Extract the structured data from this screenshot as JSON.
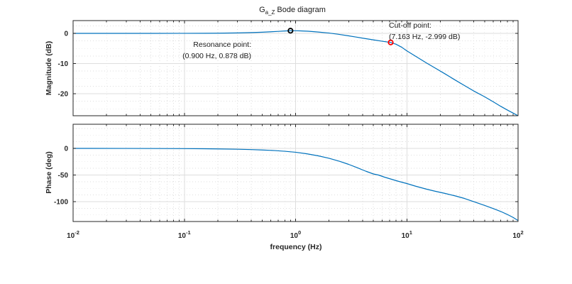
{
  "figure": {
    "title": {
      "prefix": "G",
      "subscript": "a_Z",
      "suffix": "Bode diagram"
    },
    "xlabel": "frequency (Hz)",
    "background": "#ffffff",
    "accent_color": "#0072BD"
  },
  "chart_data": [
    {
      "type": "line",
      "name": "magnitude",
      "ylabel": "Magnitude (dB)",
      "xscale": "log",
      "xlim": [
        0.01,
        100
      ],
      "ylim": [
        -27.3,
        4.24
      ],
      "grid": true,
      "legend": "none",
      "show_x_tick_labels": false,
      "xticks": [
        {
          "value": 0.01,
          "base": "10",
          "exp": "-2"
        },
        {
          "value": 0.1,
          "base": "10",
          "exp": "-1"
        },
        {
          "value": 1,
          "base": "10",
          "exp": "0"
        },
        {
          "value": 10,
          "base": "10",
          "exp": "1"
        },
        {
          "value": 100,
          "base": "10",
          "exp": "2"
        }
      ],
      "yticks": [
        {
          "value": 0,
          "label": "0"
        },
        {
          "value": -10,
          "label": "-10"
        },
        {
          "value": -20,
          "label": "-20"
        }
      ],
      "y_minor_step": 2.5,
      "series": [
        {
          "name": "magnitude-response",
          "color": "#0072BD",
          "points": [
            [
              0.01,
              0
            ],
            [
              0.02,
              0
            ],
            [
              0.05,
              0.005
            ],
            [
              0.1,
              0.02
            ],
            [
              0.15,
              0.04
            ],
            [
              0.2,
              0.07
            ],
            [
              0.3,
              0.15
            ],
            [
              0.4,
              0.26
            ],
            [
              0.5,
              0.39
            ],
            [
              0.6,
              0.53
            ],
            [
              0.7,
              0.67
            ],
            [
              0.8,
              0.79
            ],
            [
              0.9,
              0.878
            ],
            [
              1.0,
              0.87
            ],
            [
              1.1,
              0.83
            ],
            [
              1.3,
              0.71
            ],
            [
              1.6,
              0.45
            ],
            [
              2.0,
              0.1
            ],
            [
              2.4,
              -0.28
            ],
            [
              2.9,
              -0.73
            ],
            [
              3.5,
              -1.22
            ],
            [
              4.2,
              -1.7
            ],
            [
              5.0,
              -2.14
            ],
            [
              6.0,
              -2.6
            ],
            [
              7.163,
              -2.999
            ],
            [
              8.0,
              -3.6
            ],
            [
              9.0,
              -4.6
            ],
            [
              10,
              -5.8
            ],
            [
              12,
              -7.6
            ],
            [
              15,
              -9.8
            ],
            [
              18,
              -11.5
            ],
            [
              22,
              -13.4
            ],
            [
              27,
              -15.4
            ],
            [
              33,
              -17.3
            ],
            [
              40,
              -19.1
            ],
            [
              50,
              -21.0
            ],
            [
              60,
              -22.7
            ],
            [
              70,
              -24.2
            ],
            [
              80,
              -25.4
            ],
            [
              90,
              -26.4
            ],
            [
              100,
              -27.3
            ]
          ]
        }
      ],
      "markers": [
        {
          "name": "resonance-point",
          "f": 0.9,
          "v": 0.878,
          "color": "#000000"
        },
        {
          "name": "cutoff-point",
          "f": 7.163,
          "v": -2.999,
          "color": "#ff0000"
        }
      ],
      "annotations": [
        {
          "name": "resonance-label",
          "line1": "Resonance point:",
          "line2": "(0.900 Hz, 0.878 dB)"
        },
        {
          "name": "cutoff-label",
          "line1": "Cut-off point:",
          "line2": "(7.163 Hz, -2.999 dB)"
        }
      ]
    },
    {
      "type": "line",
      "name": "phase",
      "ylabel": "Phase (deg)",
      "xscale": "log",
      "xlim": [
        0.01,
        100
      ],
      "ylim": [
        -137.3,
        45.3
      ],
      "grid": true,
      "legend": "none",
      "show_x_tick_labels": true,
      "xticks": [
        {
          "value": 0.01,
          "base": "10",
          "exp": "-2"
        },
        {
          "value": 0.1,
          "base": "10",
          "exp": "-1"
        },
        {
          "value": 1,
          "base": "10",
          "exp": "0"
        },
        {
          "value": 10,
          "base": "10",
          "exp": "1"
        },
        {
          "value": 100,
          "base": "10",
          "exp": "2"
        }
      ],
      "yticks": [
        {
          "value": 0,
          "label": "0"
        },
        {
          "value": -50,
          "label": "-50"
        },
        {
          "value": -100,
          "label": "-100"
        }
      ],
      "y_minor_step": 12.5,
      "series": [
        {
          "name": "phase-response",
          "color": "#0072BD",
          "points": [
            [
              0.01,
              0
            ],
            [
              0.03,
              -0.1
            ],
            [
              0.06,
              -0.25
            ],
            [
              0.1,
              -0.45
            ],
            [
              0.15,
              -0.7
            ],
            [
              0.2,
              -1.0
            ],
            [
              0.3,
              -1.6
            ],
            [
              0.4,
              -2.3
            ],
            [
              0.5,
              -3.0
            ],
            [
              0.65,
              -4.1
            ],
            [
              0.8,
              -5.4
            ],
            [
              1.0,
              -7.3
            ],
            [
              1.25,
              -10
            ],
            [
              1.6,
              -14
            ],
            [
              2.0,
              -18.6
            ],
            [
              2.5,
              -24.4
            ],
            [
              3.0,
              -30
            ],
            [
              3.6,
              -36.5
            ],
            [
              4.3,
              -43
            ],
            [
              5.0,
              -48
            ],
            [
              5.55,
              -50
            ],
            [
              6.3,
              -54
            ],
            [
              7.163,
              -57.5
            ],
            [
              8.0,
              -60.5
            ],
            [
              9.0,
              -63.5
            ],
            [
              10,
              -66
            ],
            [
              12,
              -71
            ],
            [
              15,
              -76.5
            ],
            [
              18,
              -80.5
            ],
            [
              22,
              -84.5
            ],
            [
              27,
              -89
            ],
            [
              33,
              -94
            ],
            [
              40,
              -100
            ],
            [
              50,
              -107
            ],
            [
              60,
              -113
            ],
            [
              70,
              -118.5
            ],
            [
              80,
              -124
            ],
            [
              90,
              -129.5
            ],
            [
              100,
              -135.5
            ]
          ]
        }
      ],
      "markers": [],
      "annotations": []
    }
  ],
  "style": {
    "curve_color": "#0072BD",
    "axis_color": "#262626",
    "grid_major_color": "#dedede",
    "grid_minor_color": "#dedede",
    "text_color": "#262626"
  }
}
